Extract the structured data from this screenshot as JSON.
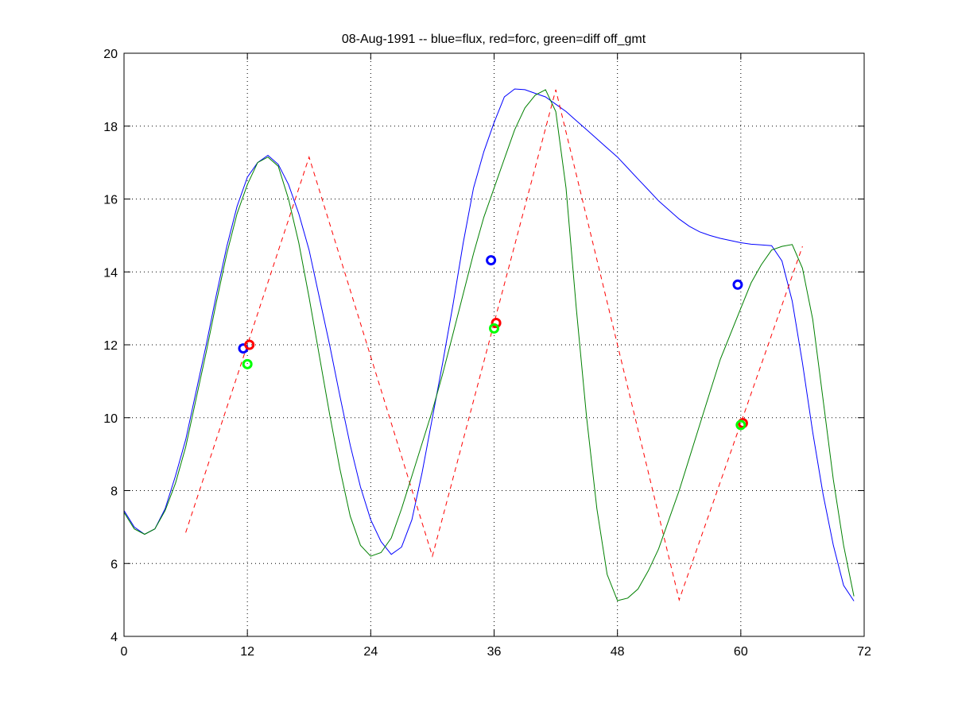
{
  "chart_data": {
    "type": "line",
    "title": "08-Aug-1991 -- blue=flux, red=forc, green=diff off_gmt",
    "xlabel": "",
    "ylabel": "",
    "xlim": [
      0,
      72
    ],
    "ylim": [
      4,
      20
    ],
    "xticks": [
      0,
      12,
      24,
      36,
      48,
      60,
      72
    ],
    "yticks": [
      4,
      6,
      8,
      10,
      12,
      14,
      16,
      18,
      20
    ],
    "grid": true,
    "series": [
      {
        "name": "flux",
        "color": "#0000ff",
        "style": "solid",
        "x": [
          0,
          1,
          2,
          3,
          4,
          5,
          6,
          7,
          8,
          9,
          10,
          11,
          12,
          13,
          14,
          15,
          16,
          17,
          18,
          19,
          20,
          21,
          22,
          23,
          24,
          25,
          26,
          27,
          28,
          29,
          30,
          31,
          32,
          33,
          34,
          35,
          36,
          37,
          38,
          39,
          40,
          41,
          42,
          43,
          44,
          45,
          46,
          47,
          48,
          49,
          50,
          51,
          52,
          53,
          54,
          55,
          56,
          57,
          58,
          59,
          60,
          61,
          62,
          63,
          64,
          65,
          66,
          67,
          68,
          69,
          70,
          71
        ],
        "y": [
          7.45,
          7.0,
          6.8,
          6.95,
          7.5,
          8.4,
          9.4,
          10.7,
          12.0,
          13.4,
          14.7,
          15.8,
          16.6,
          17.0,
          17.2,
          16.95,
          16.4,
          15.6,
          14.6,
          13.3,
          12.0,
          10.6,
          9.25,
          8.1,
          7.2,
          6.6,
          6.25,
          6.45,
          7.2,
          8.5,
          10.0,
          11.5,
          13.1,
          14.8,
          16.3,
          17.3,
          18.1,
          18.8,
          19.02,
          19.0,
          18.9,
          18.8,
          18.6,
          18.4,
          18.15,
          17.9,
          17.65,
          17.4,
          17.15,
          16.85,
          16.55,
          16.25,
          15.95,
          15.7,
          15.45,
          15.25,
          15.1,
          15.0,
          14.92,
          14.86,
          14.8,
          14.76,
          14.74,
          14.72,
          14.3,
          13.2,
          11.5,
          9.6,
          7.9,
          6.5,
          5.4,
          4.97
        ]
      },
      {
        "name": "forc",
        "color": "#ff0000",
        "style": "dashed",
        "x": [
          6,
          18,
          30,
          42,
          54,
          66
        ],
        "y": [
          6.85,
          17.15,
          6.2,
          19.0,
          5.0,
          14.7
        ]
      },
      {
        "name": "diff",
        "color": "#008000",
        "style": "solid",
        "x": [
          0,
          1,
          2,
          3,
          4,
          5,
          6,
          7,
          8,
          9,
          10,
          11,
          12,
          13,
          14,
          15,
          16,
          17,
          18,
          19,
          20,
          21,
          22,
          23,
          24,
          25,
          26,
          27,
          28,
          29,
          30,
          31,
          32,
          33,
          34,
          35,
          36,
          37,
          38,
          39,
          40,
          41,
          42,
          43,
          44,
          45,
          46,
          47,
          48,
          49,
          50,
          51,
          52,
          53,
          54,
          55,
          56,
          57,
          58,
          59,
          60,
          61,
          62,
          63,
          64,
          65,
          66,
          67,
          68,
          69,
          70,
          71
        ],
        "y": [
          7.4,
          6.95,
          6.8,
          6.95,
          7.45,
          8.2,
          9.2,
          10.5,
          11.8,
          13.2,
          14.5,
          15.6,
          16.4,
          17.0,
          17.15,
          16.9,
          16.0,
          14.8,
          13.3,
          11.7,
          10.1,
          8.6,
          7.3,
          6.5,
          6.2,
          6.3,
          6.7,
          7.5,
          8.4,
          9.3,
          10.2,
          11.2,
          12.3,
          13.4,
          14.5,
          15.5,
          16.3,
          17.1,
          17.9,
          18.5,
          18.85,
          19.0,
          18.4,
          16.3,
          13.0,
          10.0,
          7.5,
          5.7,
          4.98,
          5.05,
          5.3,
          5.8,
          6.4,
          7.2,
          8.0,
          8.9,
          9.8,
          10.7,
          11.6,
          12.3,
          13.0,
          13.7,
          14.2,
          14.6,
          14.7,
          14.75,
          14.1,
          12.7,
          10.5,
          8.3,
          6.5,
          5.1
        ]
      }
    ],
    "markers": [
      {
        "series": "flux",
        "color": "#0000ff",
        "x": [
          11.6,
          35.7,
          59.7
        ],
        "y": [
          11.9,
          14.32,
          13.65
        ]
      },
      {
        "series": "forc",
        "color": "#ff0000",
        "x": [
          12.2,
          36.2,
          60.2
        ],
        "y": [
          12.0,
          12.6,
          9.85
        ]
      },
      {
        "series": "diff",
        "color": "#00ff00",
        "x": [
          12.0,
          36.0,
          60.0
        ],
        "y": [
          11.47,
          12.45,
          9.8
        ]
      }
    ]
  }
}
